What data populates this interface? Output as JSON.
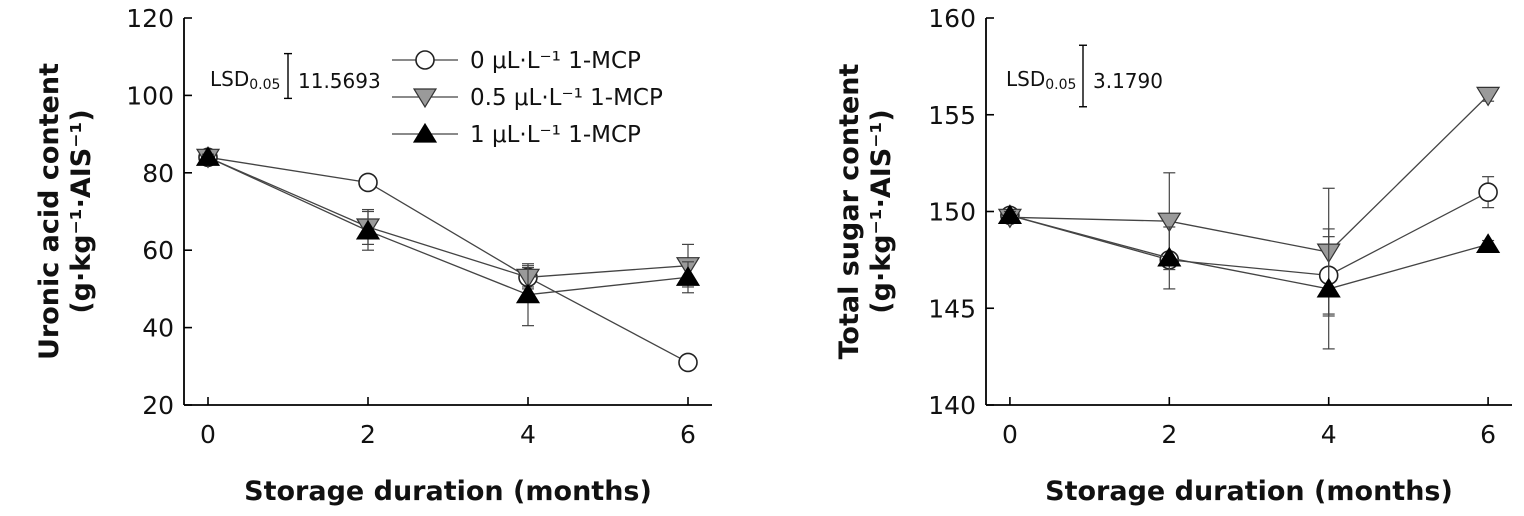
{
  "chart_data": [
    {
      "type": "line",
      "xlabel": "Storage duration (months)",
      "ylabel": "Uronic acid content",
      "ylabel_unit": "(g·kg⁻¹·AIS⁻¹)",
      "x": [
        0,
        2,
        4,
        6
      ],
      "xticks": [
        "0",
        "2",
        "4",
        "6"
      ],
      "xlim": [
        -0.3,
        6.3
      ],
      "ylim": [
        20,
        120
      ],
      "yticks": [
        "20",
        "40",
        "60",
        "80",
        "100",
        "120"
      ],
      "lsd": {
        "label": "LSD0.05",
        "label_main": "LSD",
        "label_sub": "0.05",
        "value": 11.5693,
        "value_text": "11.5693"
      },
      "legend": {
        "position": "top-right"
      },
      "series": [
        {
          "name": "0 μL·L⁻¹ 1-MCP",
          "marker": "circle",
          "values": [
            84,
            77.5,
            53,
            31
          ],
          "errors": [
            0.8,
            0.8,
            2.5,
            0.8
          ]
        },
        {
          "name": "0.5 μL·L⁻¹ 1-MCP",
          "marker": "triangle-down",
          "values": [
            84,
            66,
            53,
            56
          ],
          "errors": [
            0.8,
            4.5,
            3,
            5.5
          ]
        },
        {
          "name": "1 μL·L⁻¹ 1-MCP",
          "marker": "triangle-up",
          "values": [
            84,
            65,
            48.5,
            53
          ],
          "errors": [
            0.8,
            5,
            8,
            4
          ]
        }
      ]
    },
    {
      "type": "line",
      "xlabel": "Storage duration (months)",
      "ylabel": "Total sugar content",
      "ylabel_unit": "(g·kg⁻¹·AIS⁻¹)",
      "x": [
        0,
        2,
        4,
        6
      ],
      "xticks": [
        "0",
        "2",
        "4",
        "6"
      ],
      "xlim": [
        -0.3,
        6.3
      ],
      "ylim": [
        140,
        160
      ],
      "yticks": [
        "140",
        "145",
        "150",
        "155",
        "160"
      ],
      "lsd": {
        "label": "LSD0.05",
        "label_main": "LSD",
        "label_sub": "0.05",
        "value": 3.179,
        "value_text": "3.1790"
      },
      "series": [
        {
          "name": "0 μL·L⁻¹ 1-MCP",
          "marker": "circle",
          "values": [
            149.8,
            147.5,
            146.7,
            151
          ],
          "errors": [
            0.2,
            0.3,
            2.0,
            0.8
          ]
        },
        {
          "name": "0.5 μL·L⁻¹ 1-MCP",
          "marker": "triangle-down",
          "values": [
            149.7,
            149.5,
            147.9,
            156
          ],
          "errors": [
            0.2,
            2.5,
            3.3,
            0.3
          ]
        },
        {
          "name": "1 μL·L⁻¹ 1-MCP",
          "marker": "triangle-up",
          "values": [
            149.8,
            147.6,
            146,
            148.3
          ],
          "errors": [
            0.2,
            1.6,
            3.1,
            0.2
          ]
        }
      ]
    }
  ]
}
